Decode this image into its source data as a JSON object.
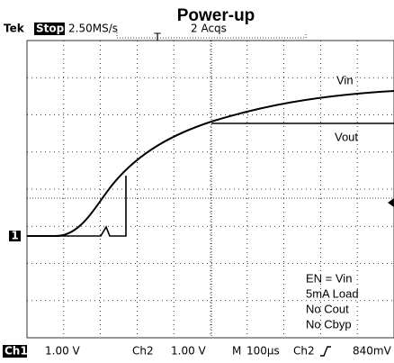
{
  "title": "Power-up",
  "header": {
    "brand": "Tek",
    "state": "Stop:",
    "rate": "2.50MS/s",
    "acqs": "2 Acqs",
    "trigger_marker": "T"
  },
  "traces": {
    "vin": "Vin",
    "vout": "Vout"
  },
  "channel_marker": "1",
  "notes": [
    "EN = Vin",
    "5mA Load",
    "No Cout",
    "No Cbyp"
  ],
  "status": {
    "ch1": "Ch1",
    "ch1_scale": "1.00 V",
    "ch2": "Ch2",
    "ch2_scale": "1.00 V",
    "timebase_prefix": "M",
    "timebase": "100µs",
    "trig_source": "Ch2",
    "trig_level": "840mV"
  }
}
